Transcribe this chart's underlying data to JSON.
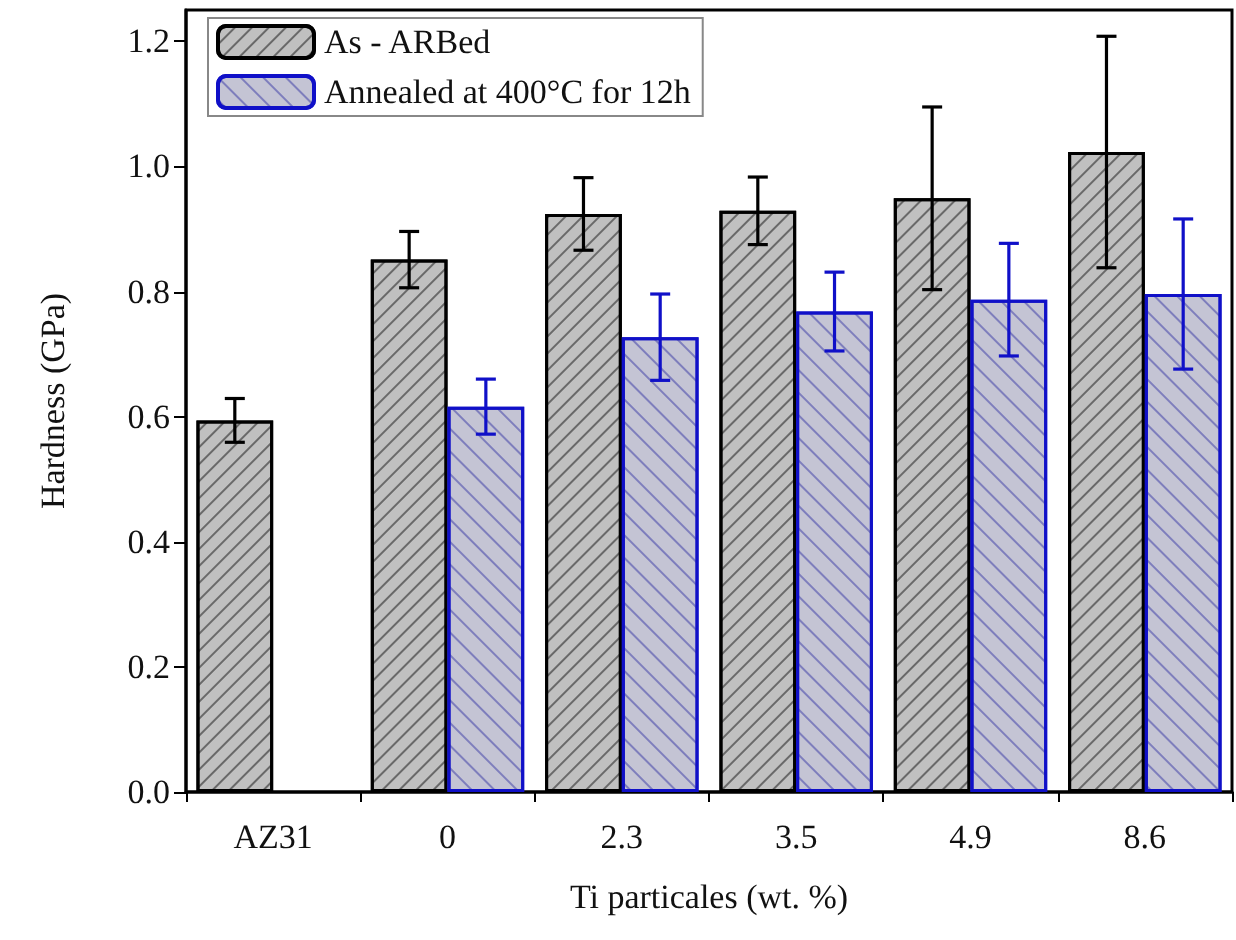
{
  "chart_data": {
    "type": "bar",
    "xlabel": "Ti particales (wt. %)",
    "ylabel": "Hardness (GPa)",
    "categories": [
      "AZ31",
      "0",
      "2.3",
      "3.5",
      "4.9",
      "8.6"
    ],
    "series": [
      {
        "name": "As - ARBed",
        "color": "#c0c0c0",
        "values": [
          0.594,
          0.851,
          0.924,
          0.929,
          0.949,
          1.023
        ],
        "errors": [
          0.035,
          0.045,
          0.058,
          0.054,
          0.146,
          0.185
        ]
      },
      {
        "name": "Annealed at 400°C for 12h",
        "color": "#c4c4d4",
        "values": [
          null,
          0.616,
          0.727,
          0.768,
          0.787,
          0.796
        ],
        "errors": [
          null,
          0.044,
          0.069,
          0.063,
          0.09,
          0.12
        ]
      }
    ],
    "ylim": [
      0,
      1.25
    ],
    "yticks": [
      {
        "value": 0,
        "label": "0.0"
      },
      {
        "value": 0.2,
        "label": "0.2"
      },
      {
        "value": 0.4,
        "label": "0.4"
      },
      {
        "value": 0.6,
        "label": "0.6"
      },
      {
        "value": 0.8,
        "label": "0.8"
      },
      {
        "value": 1.0,
        "label": "1.0"
      },
      {
        "value": 1.2,
        "label": "1.2"
      }
    ],
    "legend": "top left",
    "grid": false
  }
}
